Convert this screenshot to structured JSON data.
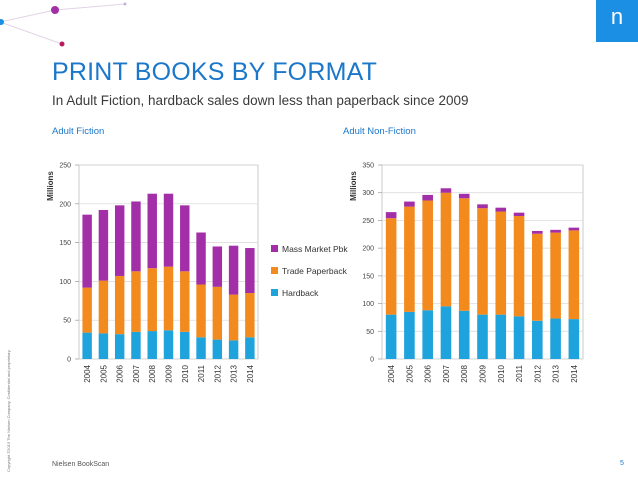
{
  "slide": {
    "title": "PRINT BOOKS BY FORMAT",
    "subtitle": "In Adult Fiction, hardback sales down less than paperback since 2009",
    "footer": "Nielsen BookScan",
    "page_number": "5",
    "logo_glyph": "n",
    "copyright": "Copyright ©2015 The Nielsen Company. Confidential and proprietary."
  },
  "colors": {
    "hardback": "#1ea3dc",
    "trade_paperback": "#f28a1e",
    "mass_market": "#a22fa8",
    "accent": "#1a77c9"
  },
  "chart_data": [
    {
      "type": "bar",
      "stacked": true,
      "title": "Adult Fiction",
      "ylabel": "Millions",
      "ylim": [
        0,
        250
      ],
      "yticks": [
        0,
        50,
        100,
        150,
        200,
        250
      ],
      "categories": [
        "2004",
        "2005",
        "2006",
        "2007",
        "2008",
        "2009",
        "2010",
        "2011",
        "2012",
        "2013",
        "2014"
      ],
      "series": [
        {
          "name": "Hardback",
          "color": "#1ea3dc",
          "values": [
            34,
            33,
            32,
            35,
            36,
            37,
            35,
            28,
            25,
            24,
            28
          ]
        },
        {
          "name": "Trade Paperback",
          "color": "#f28a1e",
          "values": [
            58,
            68,
            75,
            78,
            81,
            82,
            78,
            68,
            68,
            59,
            57
          ]
        },
        {
          "name": "Mass Market Pbk",
          "color": "#a22fa8",
          "values": [
            94,
            91,
            91,
            90,
            96,
            94,
            85,
            67,
            52,
            63,
            58
          ]
        }
      ],
      "legend": [
        "Mass Market Pbk",
        "Trade Paperback",
        "Hardback"
      ],
      "legend_position": "right"
    },
    {
      "type": "bar",
      "stacked": true,
      "title": "Adult Non-Fiction",
      "ylabel": "Millions",
      "ylim": [
        0,
        350
      ],
      "yticks": [
        0,
        50,
        100,
        150,
        200,
        250,
        300,
        350
      ],
      "categories": [
        "2004",
        "2005",
        "2006",
        "2007",
        "2008",
        "2009",
        "2010",
        "2011",
        "2012",
        "2013",
        "2014"
      ],
      "series": [
        {
          "name": "Hardback",
          "color": "#1ea3dc",
          "values": [
            80,
            85,
            88,
            95,
            87,
            80,
            80,
            77,
            69,
            73,
            72
          ]
        },
        {
          "name": "Trade Paperback",
          "color": "#f28a1e",
          "values": [
            174,
            190,
            198,
            205,
            203,
            192,
            186,
            181,
            157,
            155,
            160
          ]
        },
        {
          "name": "Mass Market Pbk",
          "color": "#a22fa8",
          "values": [
            11,
            9,
            10,
            8,
            8,
            7,
            7,
            6,
            5,
            5,
            5
          ]
        }
      ]
    }
  ]
}
